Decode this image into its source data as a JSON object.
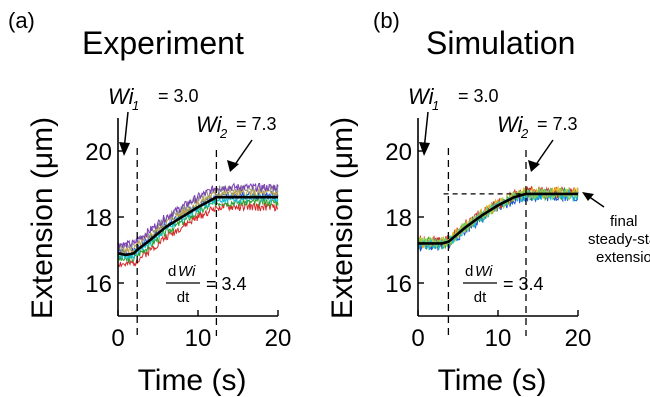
{
  "chart_data": [
    {
      "panel_label": "(a)",
      "title": "Experiment",
      "type": "line",
      "xlabel": "Time (s)",
      "ylabel": "Extension (μm)",
      "xlim": [
        0,
        20
      ],
      "ylim": [
        15,
        21
      ],
      "xticks": [
        "0",
        "10",
        "20"
      ],
      "yticks": [
        "16",
        "18",
        "20"
      ],
      "vlines_x": [
        2.4,
        12.3
      ],
      "wi1": {
        "symbol": "Wi",
        "subscript": "1",
        "value": "= 3.0"
      },
      "wi2": {
        "symbol": "Wi",
        "subscript": "2",
        "value": "= 7.3"
      },
      "rate": {
        "numerator_d": "d",
        "numerator_wi": "Wi",
        "denominator": "dt",
        "value": "= 3.4"
      },
      "mean_curve": {
        "x": [
          0,
          1,
          2,
          2.4,
          4,
          6,
          8,
          10,
          12.3,
          14,
          16,
          18,
          20
        ],
        "y": [
          16.9,
          16.85,
          16.9,
          17.0,
          17.3,
          17.7,
          18.0,
          18.3,
          18.6,
          18.6,
          18.6,
          18.6,
          18.6
        ]
      },
      "traces": [
        {
          "color": "#1f4fd8",
          "offset": 0.05
        },
        {
          "color": "#d62728",
          "offset": -0.3
        },
        {
          "color": "#2ca02c",
          "offset": -0.15
        },
        {
          "color": "#8c8c8c",
          "offset": 0.25
        },
        {
          "color": "#b8a34a",
          "offset": 0.12
        },
        {
          "color": "#7b3fb5",
          "offset": 0.3
        },
        {
          "color": "#17becf",
          "offset": -0.05
        }
      ]
    },
    {
      "panel_label": "(b)",
      "title": "Simulation",
      "type": "line",
      "xlabel": "Time (s)",
      "ylabel": "Extension (μm)",
      "xlim": [
        0,
        20
      ],
      "ylim": [
        15,
        21
      ],
      "xticks": [
        "0",
        "10",
        "20"
      ],
      "yticks": [
        "16",
        "18",
        "20"
      ],
      "vlines_x": [
        3.8,
        13.5
      ],
      "hline_y": 18.7,
      "wi1": {
        "symbol": "Wi",
        "subscript": "1",
        "value": "= 3.0"
      },
      "wi2": {
        "symbol": "Wi",
        "subscript": "2",
        "value": "= 7.3"
      },
      "rate": {
        "numerator_d": "d",
        "numerator_wi": "Wi",
        "denominator": "dt",
        "value": "= 3.4"
      },
      "final_label": [
        "final",
        "steady-state",
        "extension"
      ],
      "mean_curve": {
        "x": [
          0,
          1,
          2,
          3,
          3.8,
          6,
          8,
          10,
          12,
          13.5,
          15,
          17,
          20
        ],
        "y": [
          17.2,
          17.2,
          17.2,
          17.2,
          17.25,
          17.7,
          18.05,
          18.35,
          18.6,
          18.7,
          18.7,
          18.7,
          18.7
        ]
      },
      "traces": [
        {
          "color": "#2ca02c",
          "offset": 0.0
        },
        {
          "color": "#1f4fd8",
          "offset": -0.08
        },
        {
          "color": "#d62728",
          "offset": 0.08
        },
        {
          "color": "#e6b422",
          "offset": 0.05
        },
        {
          "color": "#17becf",
          "offset": -0.05
        },
        {
          "color": "#8fd14f",
          "offset": 0.02
        }
      ]
    }
  ]
}
